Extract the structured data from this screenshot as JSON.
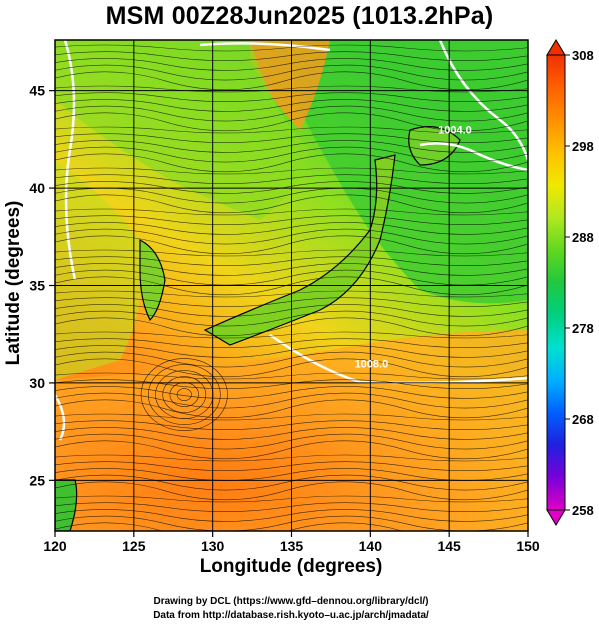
{
  "title": "MSM 00Z28Jun2025 (1013.2hPa)",
  "x_axis": {
    "label": "Longitude (degrees)",
    "ticks": [
      "120",
      "125",
      "130",
      "135",
      "140",
      "145",
      "150"
    ],
    "range": [
      120,
      150
    ]
  },
  "y_axis": {
    "label": "Latitude  (degrees)",
    "ticks": [
      "25",
      "30",
      "35",
      "40",
      "45"
    ],
    "range": [
      22.4,
      47.6
    ]
  },
  "colorbar": {
    "min": 258,
    "max": 308,
    "labels": [
      "308",
      "298",
      "288",
      "278",
      "268",
      "258"
    ],
    "colors": [
      "#e000c8",
      "#7a00d8",
      "#2020e0",
      "#0060ff",
      "#00b0ff",
      "#00e0d0",
      "#00d080",
      "#20c840",
      "#60d820",
      "#b0e820",
      "#f0e800",
      "#ffc000",
      "#ff9000",
      "#ff6000",
      "#f03000"
    ]
  },
  "isobars": [
    {
      "label": "1004.0",
      "lon": 144.3,
      "lat": 42.8
    },
    {
      "label": "1008.0",
      "lon": 139.0,
      "lat": 30.8
    }
  ],
  "credits": {
    "line1": "Drawing by DCL (https://www.gfd–dennou.org/library/dcl/)",
    "line2": "Data from http://database.rish.kyoto–u.ac.jp/arch/jmadata/"
  },
  "map_colors": {
    "warm": "#ff8c1a",
    "mid": "#d8e020",
    "cool": "#3cd02a",
    "grid": "#000000",
    "isobar": "#ffffff"
  }
}
